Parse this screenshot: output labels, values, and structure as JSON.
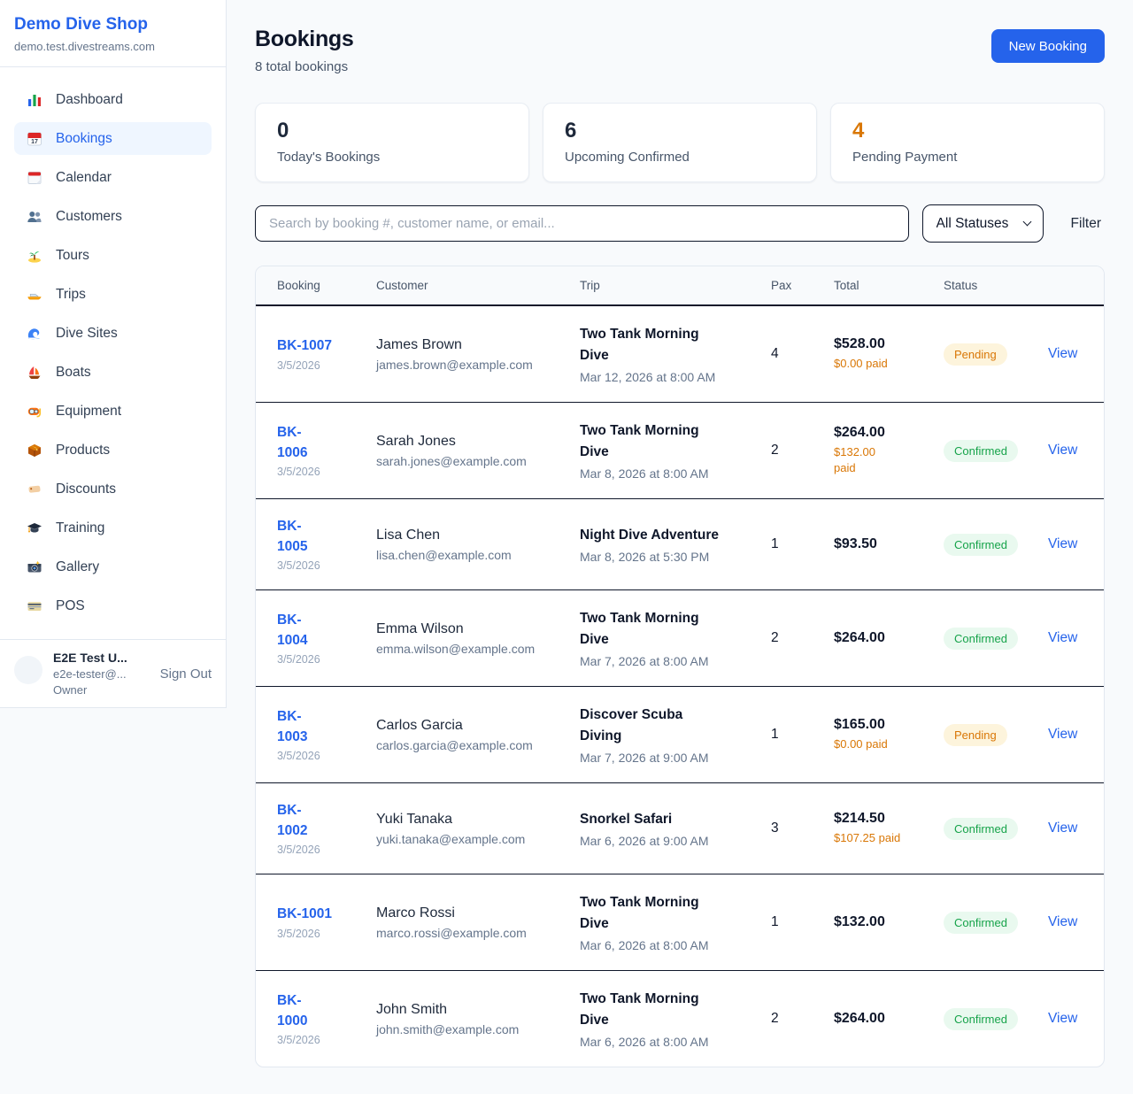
{
  "brand": {
    "name": "Demo Dive Shop",
    "domain": "demo.test.divestreams.com"
  },
  "sidebar": {
    "items": [
      {
        "icon": "bar-chart-icon",
        "label": "Dashboard",
        "active": false
      },
      {
        "icon": "calendar-icon",
        "label": "Bookings",
        "active": true
      },
      {
        "icon": "tear-off-calendar-icon",
        "label": "Calendar",
        "active": false
      },
      {
        "icon": "people-icon",
        "label": "Customers",
        "active": false
      },
      {
        "icon": "island-icon",
        "label": "Tours",
        "active": false
      },
      {
        "icon": "motorboat-icon",
        "label": "Trips",
        "active": false
      },
      {
        "icon": "wave-icon",
        "label": "Dive Sites",
        "active": false
      },
      {
        "icon": "sailboat-icon",
        "label": "Boats",
        "active": false
      },
      {
        "icon": "diving-mask-icon",
        "label": "Equipment",
        "active": false
      },
      {
        "icon": "package-icon",
        "label": "Products",
        "active": false
      },
      {
        "icon": "tag-icon",
        "label": "Discounts",
        "active": false
      },
      {
        "icon": "graduation-cap-icon",
        "label": "Training",
        "active": false
      },
      {
        "icon": "camera-icon",
        "label": "Gallery",
        "active": false
      },
      {
        "icon": "credit-card-icon",
        "label": "POS",
        "active": false
      }
    ],
    "user": {
      "name": "E2E Test U...",
      "email": "e2e-tester@...",
      "role": "Owner",
      "sign_out_label": "Sign Out"
    }
  },
  "header": {
    "title": "Bookings",
    "subtitle": "8 total bookings",
    "new_booking_label": "New Booking"
  },
  "stats": [
    {
      "value": "0",
      "label": "Today's Bookings",
      "highlight": false
    },
    {
      "value": "6",
      "label": "Upcoming Confirmed",
      "highlight": false
    },
    {
      "value": "4",
      "label": "Pending Payment",
      "highlight": true
    }
  ],
  "controls": {
    "search_placeholder": "Search by booking #, customer name, or email...",
    "status_filter_value": "All Statuses",
    "filter_label": "Filter"
  },
  "table": {
    "columns": [
      "Booking",
      "Customer",
      "Trip",
      "Pax",
      "Total",
      "Status"
    ],
    "rows": [
      {
        "id": "BK-1007",
        "date": "3/5/2026",
        "customer": "James Brown",
        "email": "james.brown@example.com",
        "trip": "Two Tank Morning\nDive",
        "datetime": "Mar 12, 2026 at 8:00 AM",
        "pax": "4",
        "total": "$528.00",
        "paid": "$0.00 paid",
        "status": "Pending",
        "action": "View"
      },
      {
        "id": "BK-\n1006",
        "date": "3/5/2026",
        "customer": "Sarah Jones",
        "email": "sarah.jones@example.com",
        "trip": "Two Tank Morning\nDive",
        "datetime": "Mar 8, 2026 at 8:00 AM",
        "pax": "2",
        "total": "$264.00",
        "paid": "$132.00\npaid",
        "status": "Confirmed",
        "action": "View"
      },
      {
        "id": "BK-\n1005",
        "date": "3/5/2026",
        "customer": "Lisa Chen",
        "email": "lisa.chen@example.com",
        "trip": "Night Dive Adventure",
        "datetime": "Mar 8, 2026 at 5:30 PM",
        "pax": "1",
        "total": "$93.50",
        "paid": "",
        "status": "Confirmed",
        "action": "View"
      },
      {
        "id": "BK-\n1004",
        "date": "3/5/2026",
        "customer": "Emma Wilson",
        "email": "emma.wilson@example.com",
        "trip": "Two Tank Morning\nDive",
        "datetime": "Mar 7, 2026 at 8:00 AM",
        "pax": "2",
        "total": "$264.00",
        "paid": "",
        "status": "Confirmed",
        "action": "View"
      },
      {
        "id": "BK-\n1003",
        "date": "3/5/2026",
        "customer": "Carlos Garcia",
        "email": "carlos.garcia@example.com",
        "trip": "Discover Scuba\nDiving",
        "datetime": "Mar 7, 2026 at 9:00 AM",
        "pax": "1",
        "total": "$165.00",
        "paid": "$0.00 paid",
        "status": "Pending",
        "action": "View"
      },
      {
        "id": "BK-\n1002",
        "date": "3/5/2026",
        "customer": "Yuki Tanaka",
        "email": "yuki.tanaka@example.com",
        "trip": "Snorkel Safari",
        "datetime": "Mar 6, 2026 at 9:00 AM",
        "pax": "3",
        "total": "$214.50",
        "paid": "$107.25 paid",
        "status": "Confirmed",
        "action": "View"
      },
      {
        "id": "BK-1001",
        "date": "3/5/2026",
        "customer": "Marco Rossi",
        "email": "marco.rossi@example.com",
        "trip": "Two Tank Morning\nDive",
        "datetime": "Mar 6, 2026 at 8:00 AM",
        "pax": "1",
        "total": "$132.00",
        "paid": "",
        "status": "Confirmed",
        "action": "View"
      },
      {
        "id": "BK-\n1000",
        "date": "3/5/2026",
        "customer": "John Smith",
        "email": "john.smith@example.com",
        "trip": "Two Tank Morning\nDive",
        "datetime": "Mar 6, 2026 at 8:00 AM",
        "pax": "2",
        "total": "$264.00",
        "paid": "",
        "status": "Confirmed",
        "action": "View"
      }
    ]
  },
  "colors": {
    "accent": "#2563eb",
    "pending": "#d97706",
    "confirmed": "#16a34a",
    "paid_text": "#d97706"
  }
}
